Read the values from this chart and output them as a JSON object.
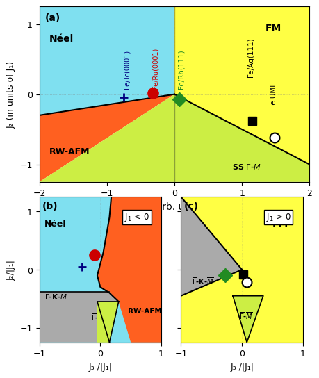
{
  "panel_a": {
    "xlim": [
      -2,
      2
    ],
    "ylim": [
      -1.25,
      1.25
    ],
    "xlabel": "J₁ (arb. units)",
    "ylabel": "J₂ (in units of J₁)",
    "label": "(a)",
    "colors": {
      "neel": "#7FE0F0",
      "rwafm": "#FF6020",
      "ss": "#CCEE44",
      "fm": "#FFFF44"
    }
  },
  "panel_b": {
    "xlim": [
      -1,
      1
    ],
    "ylim": [
      -1.25,
      1.25
    ],
    "xlabel": "J₃ /|J₁|",
    "ylabel": "J₂/|J₁|",
    "label": "(b)",
    "box_label": "J₁ < 0",
    "colors": {
      "neel": "#7FE0F0",
      "rwafm": "#FF6020",
      "gamma_km": "#AAAAAA",
      "gamma_m": "#CCEE44"
    }
  },
  "panel_c": {
    "xlim": [
      -1,
      1
    ],
    "ylim": [
      -1.25,
      1.25
    ],
    "xlabel": "J₃ /|J₁|",
    "label": "(c)",
    "box_label": "J₁ > 0",
    "colors": {
      "fm": "#FFFF44",
      "gamma_km": "#AAAAAA",
      "gamma_m": "#CCEE44"
    }
  }
}
